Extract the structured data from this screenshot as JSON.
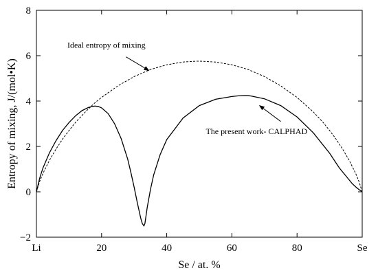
{
  "chart_data": {
    "type": "line",
    "title": "",
    "xlabel": "Se / at. %",
    "ylabel": "Entropy of mixing, J/(mol•K)",
    "xlim": [
      0,
      100
    ],
    "ylim": [
      -2,
      8
    ],
    "grid": false,
    "x_ticks": [
      {
        "value": 0,
        "label": "Li"
      },
      {
        "value": 20,
        "label": "20"
      },
      {
        "value": 40,
        "label": "40"
      },
      {
        "value": 60,
        "label": "60"
      },
      {
        "value": 80,
        "label": "80"
      },
      {
        "value": 100,
        "label": "Se"
      }
    ],
    "y_ticks": [
      {
        "value": -2,
        "label": "−2"
      },
      {
        "value": 0,
        "label": "0"
      },
      {
        "value": 2,
        "label": "2"
      },
      {
        "value": 4,
        "label": "4"
      },
      {
        "value": 6,
        "label": "6"
      },
      {
        "value": 8,
        "label": "8"
      }
    ],
    "series": [
      {
        "style": "dashed",
        "x": [
          0,
          1,
          2,
          4,
          6,
          8,
          10,
          12,
          15,
          18,
          20,
          25,
          30,
          35,
          40,
          45,
          48,
          50,
          55,
          60,
          65,
          70,
          75,
          80,
          85,
          88,
          90,
          92,
          94,
          96,
          98,
          99,
          100
        ],
        "y": [
          0,
          0.46,
          0.81,
          1.39,
          1.88,
          2.32,
          2.7,
          3.06,
          3.52,
          3.93,
          4.16,
          4.67,
          5.08,
          5.39,
          5.6,
          5.72,
          5.75,
          5.76,
          5.72,
          5.6,
          5.39,
          5.08,
          4.67,
          4.16,
          3.52,
          3.06,
          2.7,
          2.32,
          1.88,
          1.39,
          0.81,
          0.46,
          0
        ]
      },
      {
        "style": "solid",
        "x": [
          0,
          1,
          2,
          4,
          6,
          8,
          10,
          12,
          14,
          16,
          17,
          18,
          19,
          20,
          22,
          24,
          26,
          28,
          29,
          30,
          31,
          32,
          32.5,
          33,
          33.3,
          34,
          35,
          36,
          38,
          40,
          45,
          50,
          55,
          60,
          62,
          64,
          65,
          66,
          70,
          75,
          80,
          85,
          90,
          93,
          95,
          97,
          98,
          99,
          100
        ],
        "y": [
          0,
          0.6,
          1.05,
          1.72,
          2.25,
          2.7,
          3.05,
          3.35,
          3.58,
          3.72,
          3.76,
          3.78,
          3.76,
          3.7,
          3.45,
          3.0,
          2.35,
          1.45,
          0.85,
          0.2,
          -0.5,
          -1.15,
          -1.4,
          -1.5,
          -1.4,
          -0.7,
          0.1,
          0.75,
          1.65,
          2.3,
          3.25,
          3.8,
          4.08,
          4.2,
          4.23,
          4.24,
          4.24,
          4.22,
          4.1,
          3.8,
          3.3,
          2.6,
          1.7,
          1.05,
          0.7,
          0.35,
          0.22,
          0.1,
          0
        ]
      }
    ],
    "annotations": [
      {
        "text": "Ideal entropy of mixing",
        "x": 9.5,
        "y": 6.35,
        "arrow_from": [
          27.5,
          5.95
        ],
        "arrow_to": [
          34.5,
          5.35
        ]
      },
      {
        "text": "The present work- CALPHAD",
        "x": 52,
        "y": 2.55,
        "arrow_from": [
          75,
          3.1
        ],
        "arrow_to": [
          68.5,
          3.8
        ]
      }
    ]
  }
}
